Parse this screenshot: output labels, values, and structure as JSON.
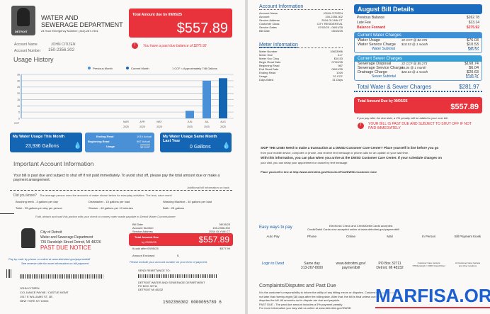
{
  "header": {
    "dept_line1": "WATER AND",
    "dept_line2": "SEWERAGE DEPARTMENT",
    "emergency": "24 Hour Emergency Number: (313)-267-7401",
    "logo_text": "DETROIT"
  },
  "account": {
    "name_label": "Account Name",
    "name": "JOHN CITIZEN",
    "number_label": "Account Number",
    "number": "150-2356.302"
  },
  "total_due": {
    "label": "Total Amount due by 09/05/25",
    "amount": "$557.89",
    "past_due_msg": "You have a past due balance of $275.92"
  },
  "usage": {
    "title": "Usage History",
    "legend_prev": "Previous Month",
    "legend_cur": "Current Month",
    "note": "1 CCF = Approximately 748 Gallons"
  },
  "chart_data": {
    "type": "bar",
    "ylabel": "CCF",
    "ylim": [
      0,
      35
    ],
    "yticks": [
      0,
      5,
      10,
      15,
      20,
      25,
      30,
      35
    ],
    "categories": [
      "MAR",
      "APR",
      "MAY",
      "JUN",
      "JUL",
      "AUG"
    ],
    "year_labels": [
      "2025",
      "2025",
      "2025",
      "2025",
      "2025",
      "2025"
    ],
    "values": [
      0,
      0,
      0,
      6,
      30,
      32
    ],
    "current_index": 5,
    "colors": {
      "previous": "#4a90d6",
      "current": "#1565b5"
    },
    "grid": true
  },
  "boxes": {
    "this_month_title": "My Water Usage This Month",
    "this_month_value": "23,936 Gallons",
    "ending_label": "Ending Read",
    "ending_value": "1019",
    "ending_type": "Actual",
    "beginning_label": "Beginning Read",
    "beginning_value": "987",
    "beginning_type": "Actual",
    "usage_label": "Usage",
    "usage_value": "32 CCF",
    "last_year_title": "My Water Usage Same Month Last Year",
    "last_year_value": "0 Gallons"
  },
  "important": {
    "title": "Important Account Information",
    "text": "Your bill is past due and subject to shut off if not paid immediately. To avoid shut off, please pay the total amount due or make a payment arrangement.",
    "more": "Additional bill information on back"
  },
  "did_you_know": {
    "title": "Did you know?",
    "intro": "The average person uses the amounts of water shown below for everyday activities. The less, save more!",
    "items": [
      "Brushing teeth - 3 gallons per day",
      "Dishwasher - 15 gallons per load",
      "Washing Machine - 40 gallons per load",
      "Toilet - 25 gallons per day per person",
      "Shower - 40 gallons per 10 minutes",
      "Bath - 25 gallons"
    ]
  },
  "stub": {
    "fold_text": "Fold, detach and mail this portion with your check or money order made payable to Detroit Water Commissioner",
    "city": "City of Detroit",
    "dept": "Water and Sewerage Department",
    "address": "735 Randolph Street Detroit, MI 48226",
    "notice": "PAST DUE NOTICE",
    "bill_date_label": "Bill Date",
    "bill_date": "08/15/25",
    "acct_label": "Account Number",
    "acct": "150-2356.302",
    "svc_label": "Service Address",
    "svc": "2934 GLYNN CT",
    "due_label": "Total Amount Due",
    "due_by": "by 09/05/25",
    "due_amount": "$557.89",
    "after_label": "If paid after 09/05/25",
    "after_amount": "$577.99",
    "enclosed_label": "Amount Enclosed",
    "enclosed_symbol": "$",
    "pay_note1": "Pay by mail, by phone or online at www.detroitmi.gov/paymentbill",
    "pay_note2": "See reverse side for more information on bill payment",
    "include_note": "Please include your account number on your form of payment.",
    "remit_label": "SEND REMITTANCE TO:",
    "remit1": "DETROIT WATER AND SEWERAGE DEPARTMENT",
    "remit2": "PO BOX 32711",
    "remit3": "DETROIT MI 48232",
    "addr1": "JOHN CITIZEN",
    "addr2": "C/O JANICE PAYNE / CASTLE MGMT",
    "addr3": "1917 E WILLIAMS ST, 3B",
    "addr4": "NEW YORK NY 10004",
    "scanline": "1502356302 0000055789 6"
  },
  "acct_info": {
    "title": "Account Information",
    "rows": [
      [
        "Account Name",
        "JOHN CITIZEN"
      ],
      [
        "Account",
        "150-2356.302"
      ],
      [
        "Service Address",
        "2934 GLYNN CT"
      ],
      [
        "Customer Class",
        "CITY RESIDENTIAL"
      ],
      [
        "Service Dates",
        "07/02/25 - 08/01/25"
      ],
      [
        "Bill Date",
        "08/15/25"
      ]
    ]
  },
  "meter_info": {
    "title": "Meter Information",
    "rows": [
      [
        "Meter Number",
        "19833996"
      ],
      [
        "Meter Size",
        "3-4\""
      ],
      [
        "Meter Svc Chrg",
        "$10.53"
      ],
      [
        "Begin Read Date",
        "07/02/25"
      ],
      [
        "Beginning Read",
        "987"
      ],
      [
        "End Read Date",
        "08/01/25"
      ],
      [
        "Ending Read",
        "1019"
      ],
      [
        "Usage",
        "32 CCF"
      ],
      [
        "Days Billed",
        "31 Days"
      ]
    ]
  },
  "bill": {
    "title": "August Bill Details",
    "prev_label": "Previous Balance",
    "prev": "$262.78",
    "late_label": "Late Fee",
    "late": "$13.14",
    "fwd_label": "Balance Forward",
    "fwd": "$275.92",
    "water_title": "Current Water Charges",
    "water": [
      [
        "Water Usage",
        "32 CCF @ $2.376",
        "$76.03"
      ],
      [
        "Water Service Charge",
        "$10.53 @ 1 month",
        "$10.53"
      ]
    ],
    "water_sub_label": "Water Subtotal",
    "water_sub": "$86.56",
    "sewer_title": "Current Sewer Charges",
    "sewer": [
      [
        "Sewerage Disposal",
        "32 CCF @ $5.273",
        "$168.74"
      ],
      [
        "Sewerage Service Charge",
        "$6.04 @ 1 month",
        "$6.04"
      ],
      [
        "Drainage Charge",
        "$20.63 @ 1 month",
        "$20.63"
      ]
    ],
    "sewer_sub_label": "Sewer Subtotal",
    "sewer_sub": "$195.41",
    "total_label": "Total Water & Sewer Charges",
    "total": "$281.97",
    "due_label": "Total Amount Due by 09/05/25",
    "due": "$557.89",
    "penalty": "If you pay after the due date, a 2% penalty will be added to your next bill.",
    "warning": "YOUR BILL IS PAST DUE AND SUBJECT TO SHUT OFF IF NOT PAID IMMEDIATELY"
  },
  "skip": {
    "line1": "SKIP THE LINE! Need to make a transaction at a DWSD Customer Care Center? Place yourself in line before you go",
    "line2": "from your mobile device, computer or phone, and receive text message or phone calls for an update on your wait time.",
    "line3": "With this information, you can plan when you arrive at the DWSD Customer Care Center. If your schedule changes on",
    "line4": "your visit, you can delay your appointment or cancel by text message.",
    "link": "Place yourself in line at http://www.detroitmi.gov/How-Do-I/Find/DWSD-Customer-Care"
  },
  "pay": {
    "title": "Easy ways to pay",
    "accepted1": "Electronic Check and Credit/Debit Cards accepted.",
    "accepted2": "Credit/Debit Cards now accepted online at www.detroitmi.gov/paymentbill",
    "cols": [
      "Auto Pay",
      "Phone",
      "Online",
      "Mail",
      "In Person",
      "Bill Payment Kiosk"
    ],
    "vals": [
      [
        "Login to Dwsd",
        ""
      ],
      [
        "Same day",
        "313-267-8000"
      ],
      [
        "www.detroitmi.gov/",
        "paymentbill"
      ],
      [
        "PO Box 32711",
        "Detroit, MI 48232"
      ],
      [
        "Customer Care Centers",
        "735 Randolph / 13303 Grand River"
      ],
      [
        "At Customer Care Centers",
        "and other locations"
      ]
    ]
  },
  "complaints": {
    "title": "Complaints/Disputes and Past Due",
    "lines": [
      "It is the customer's responsibility to inform the utility of any billing errors or disputes. Customers may dispute",
      "not later than twenty-eight (28) days after the billing date. After that, the bill is final unless customer",
      "disputes the bill. All amounts not in dispute are due and payable.",
      "PAST DUE - The past due amount includes a 5% payment penalty.",
      "For more information you may visit us online at www.detroitmi.gov/DWSD"
    ]
  },
  "watermark": "MARFISA.ORG"
}
